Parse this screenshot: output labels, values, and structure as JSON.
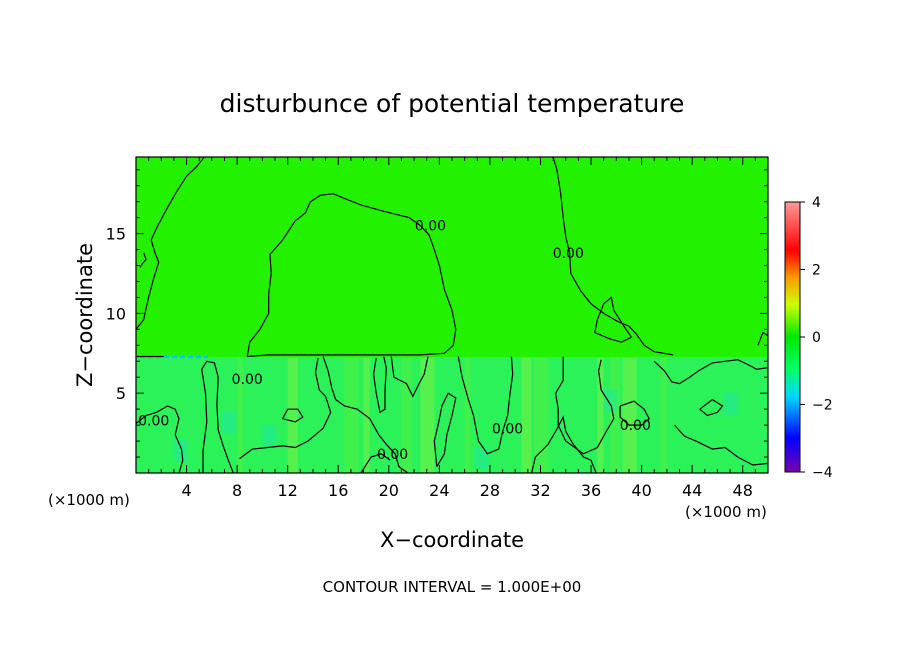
{
  "chart_data": {
    "type": "heatmap",
    "title": "disturbunce of potential temperature",
    "xlabel": "X−coordinate",
    "ylabel": "Z−coordinate",
    "x_unit_left": "(×1000 m)",
    "x_unit_right": "(×1000 m)",
    "footer": "CONTOUR INTERVAL = 1.000E+00",
    "xlim": [
      0,
      50
    ],
    "ylim": [
      0,
      19.8
    ],
    "x_ticks": [
      4,
      8,
      12,
      16,
      20,
      24,
      28,
      32,
      36,
      40,
      44,
      48
    ],
    "y_ticks": [
      5,
      10,
      15
    ],
    "colorbar": {
      "range": [
        -4,
        4
      ],
      "ticks": [
        4,
        2,
        0,
        -2,
        -4
      ],
      "colors": [
        "#7a00b0",
        "#0000ff",
        "#00d8ff",
        "#00ff66",
        "#00e800",
        "#ccff00",
        "#ff9900",
        "#ff0000",
        "#ff9a9a"
      ]
    },
    "background_value": 0.0,
    "boundary_level_z": 7.3,
    "contour_label": "0.00",
    "contour_labels": [
      {
        "x": 8.8,
        "z": 5.9
      },
      {
        "x": 1.4,
        "z": 3.3
      },
      {
        "x": 20.3,
        "z": 1.2
      },
      {
        "x": 23.3,
        "z": 15.5
      },
      {
        "x": 34.2,
        "z": 13.8
      },
      {
        "x": 29.4,
        "z": 2.8
      },
      {
        "x": 39.5,
        "z": 3.0
      }
    ],
    "contours": [
      {
        "level": 0,
        "points": [
          [
            0.0,
            9.0
          ],
          [
            0.6,
            9.6
          ],
          [
            1.0,
            11.0
          ],
          [
            1.4,
            12.2
          ],
          [
            1.8,
            13.2
          ],
          [
            1.5,
            13.8
          ],
          [
            1.2,
            14.6
          ],
          [
            1.6,
            15.3
          ],
          [
            2.4,
            16.5
          ],
          [
            3.2,
            17.6
          ],
          [
            4.0,
            18.6
          ],
          [
            4.8,
            19.2
          ],
          [
            5.4,
            19.8
          ]
        ]
      },
      {
        "level": 0,
        "points": [
          [
            0.3,
            12.9
          ],
          [
            0.8,
            13.4
          ],
          [
            0.6,
            13.8
          ]
        ]
      },
      {
        "level": 0,
        "points": [
          [
            8.8,
            7.3
          ],
          [
            9.0,
            8.2
          ],
          [
            9.8,
            9.0
          ],
          [
            10.5,
            10.0
          ],
          [
            10.5,
            11.2
          ],
          [
            10.7,
            12.5
          ],
          [
            10.6,
            13.7
          ],
          [
            11.6,
            14.6
          ],
          [
            12.6,
            15.8
          ],
          [
            13.4,
            16.3
          ],
          [
            13.8,
            17.0
          ],
          [
            14.6,
            17.4
          ],
          [
            15.6,
            17.5
          ],
          [
            16.8,
            17.1
          ],
          [
            17.8,
            16.8
          ],
          [
            19.6,
            16.4
          ],
          [
            21.6,
            16.0
          ],
          [
            22.5,
            15.5
          ],
          [
            23.2,
            14.9
          ],
          [
            23.6,
            14.0
          ],
          [
            24.0,
            13.0
          ],
          [
            24.4,
            11.5
          ],
          [
            25.0,
            10.2
          ],
          [
            25.3,
            9.0
          ],
          [
            25.1,
            8.0
          ],
          [
            24.4,
            7.5
          ],
          [
            22.5,
            7.4
          ],
          [
            20.0,
            7.4
          ],
          [
            17.0,
            7.4
          ],
          [
            13.5,
            7.4
          ],
          [
            10.5,
            7.4
          ],
          [
            8.8,
            7.3
          ]
        ]
      },
      {
        "level": 0,
        "points": [
          [
            33.0,
            19.8
          ],
          [
            33.3,
            19.0
          ],
          [
            33.6,
            17.5
          ],
          [
            33.8,
            16.0
          ],
          [
            34.0,
            14.8
          ],
          [
            34.3,
            13.8
          ],
          [
            34.4,
            12.5
          ],
          [
            35.2,
            11.4
          ],
          [
            36.0,
            10.6
          ],
          [
            37.0,
            10.0
          ],
          [
            38.1,
            9.5
          ],
          [
            39.0,
            9.2
          ],
          [
            39.6,
            8.7
          ],
          [
            40.2,
            8.0
          ],
          [
            41.0,
            7.6
          ],
          [
            42.5,
            7.4
          ]
        ]
      },
      {
        "level": 0,
        "points": [
          [
            36.3,
            8.8
          ],
          [
            36.5,
            9.6
          ],
          [
            37.0,
            10.6
          ],
          [
            37.6,
            11.0
          ],
          [
            37.8,
            10.2
          ],
          [
            38.6,
            9.2
          ],
          [
            39.2,
            8.5
          ],
          [
            38.4,
            8.2
          ],
          [
            37.5,
            8.4
          ],
          [
            36.3,
            8.8
          ]
        ]
      },
      {
        "level": 0,
        "points": [
          [
            0.0,
            3.1
          ],
          [
            0.8,
            3.6
          ],
          [
            1.6,
            3.8
          ],
          [
            2.5,
            4.2
          ],
          [
            3.1,
            4.0
          ],
          [
            3.4,
            3.4
          ],
          [
            3.1,
            2.4
          ],
          [
            3.6,
            1.5
          ],
          [
            3.7,
            0.8
          ],
          [
            3.4,
            0.0
          ]
        ]
      },
      {
        "level": 0,
        "points": [
          [
            5.3,
            0.0
          ],
          [
            5.3,
            1.4
          ],
          [
            5.6,
            3.2
          ],
          [
            5.5,
            5.0
          ],
          [
            5.2,
            6.5
          ],
          [
            5.6,
            7.0
          ],
          [
            6.2,
            6.9
          ],
          [
            6.5,
            6.0
          ],
          [
            6.4,
            4.3
          ],
          [
            6.5,
            2.7
          ],
          [
            6.9,
            1.7
          ],
          [
            7.3,
            0.8
          ],
          [
            7.7,
            0.0
          ]
        ]
      },
      {
        "level": 0,
        "points": [
          [
            8.2,
            0.9
          ],
          [
            9.2,
            1.5
          ],
          [
            10.4,
            1.6
          ],
          [
            11.6,
            1.7
          ],
          [
            12.6,
            1.6
          ],
          [
            13.6,
            2.0
          ],
          [
            14.8,
            2.8
          ],
          [
            15.4,
            3.8
          ],
          [
            15.0,
            4.8
          ],
          [
            14.5,
            5.2
          ],
          [
            14.2,
            6.3
          ],
          [
            14.4,
            7.2
          ]
        ]
      },
      {
        "level": 0,
        "points": [
          [
            14.8,
            7.3
          ],
          [
            15.2,
            6.4
          ],
          [
            15.5,
            5.3
          ],
          [
            15.8,
            4.6
          ],
          [
            16.5,
            4.2
          ],
          [
            17.5,
            4.0
          ],
          [
            18.5,
            3.4
          ],
          [
            19.2,
            2.4
          ],
          [
            19.8,
            1.8
          ],
          [
            20.5,
            1.2
          ],
          [
            20.8,
            0.4
          ],
          [
            21.5,
            0.0
          ]
        ]
      },
      {
        "level": 0,
        "points": [
          [
            17.8,
            0.0
          ],
          [
            18.6,
            1.0
          ],
          [
            19.4,
            1.2
          ],
          [
            20.1,
            0.8
          ]
        ]
      },
      {
        "level": 0,
        "points": [
          [
            19.0,
            7.2
          ],
          [
            18.8,
            6.2
          ],
          [
            19.0,
            5.0
          ],
          [
            19.3,
            3.8
          ],
          [
            19.7,
            4.0
          ],
          [
            19.7,
            5.2
          ],
          [
            19.8,
            6.6
          ],
          [
            19.6,
            7.3
          ]
        ]
      },
      {
        "level": 0,
        "points": [
          [
            20.2,
            7.3
          ],
          [
            20.4,
            6.0
          ],
          [
            21.4,
            5.6
          ],
          [
            21.9,
            4.8
          ],
          [
            22.4,
            5.6
          ],
          [
            22.8,
            6.2
          ],
          [
            23.1,
            7.3
          ]
        ]
      },
      {
        "level": 0,
        "points": [
          [
            25.5,
            7.3
          ],
          [
            25.8,
            6.0
          ],
          [
            26.3,
            4.6
          ],
          [
            26.7,
            3.6
          ],
          [
            27.1,
            2.0
          ],
          [
            27.8,
            1.2
          ],
          [
            28.7,
            1.5
          ],
          [
            29.0,
            2.6
          ],
          [
            29.4,
            3.6
          ],
          [
            29.6,
            5.0
          ],
          [
            29.8,
            6.2
          ],
          [
            29.7,
            7.3
          ]
        ]
      },
      {
        "level": 0,
        "points": [
          [
            23.8,
            0.4
          ],
          [
            24.4,
            1.2
          ],
          [
            24.6,
            2.4
          ],
          [
            25.0,
            3.6
          ],
          [
            25.3,
            4.7
          ],
          [
            24.7,
            5.0
          ],
          [
            24.2,
            4.2
          ],
          [
            23.9,
            3.0
          ],
          [
            23.6,
            2.0
          ],
          [
            23.8,
            0.4
          ]
        ]
      },
      {
        "level": 0,
        "points": [
          [
            31.3,
            0.0
          ],
          [
            31.6,
            1.0
          ],
          [
            32.6,
            1.8
          ],
          [
            33.2,
            2.6
          ],
          [
            33.8,
            3.5
          ],
          [
            34.0,
            2.6
          ],
          [
            34.6,
            1.8
          ],
          [
            35.4,
            1.0
          ],
          [
            36.0,
            0.8
          ],
          [
            36.4,
            0.0
          ]
        ]
      },
      {
        "level": 0,
        "points": [
          [
            38.3,
            4.2
          ],
          [
            39.4,
            4.5
          ],
          [
            40.2,
            4.0
          ],
          [
            40.6,
            3.4
          ],
          [
            40.0,
            3.0
          ],
          [
            39.0,
            3.0
          ],
          [
            38.3,
            3.5
          ],
          [
            38.3,
            4.2
          ]
        ]
      },
      {
        "level": 0,
        "points": [
          [
            41.0,
            7.0
          ],
          [
            41.8,
            6.4
          ],
          [
            42.4,
            5.7
          ],
          [
            43.0,
            5.6
          ],
          [
            43.8,
            6.0
          ],
          [
            44.5,
            6.4
          ],
          [
            45.6,
            6.9
          ],
          [
            46.6,
            7.0
          ],
          [
            47.6,
            7.1
          ],
          [
            48.4,
            6.8
          ],
          [
            49.1,
            6.5
          ],
          [
            50.0,
            6.6
          ]
        ]
      },
      {
        "level": 0,
        "points": [
          [
            44.6,
            4.0
          ],
          [
            45.6,
            4.6
          ],
          [
            46.4,
            4.2
          ],
          [
            46.0,
            3.8
          ],
          [
            45.2,
            3.6
          ],
          [
            44.6,
            4.0
          ]
        ]
      },
      {
        "level": 0,
        "points": [
          [
            42.6,
            3.0
          ],
          [
            43.4,
            2.3
          ],
          [
            44.3,
            2.0
          ],
          [
            45.6,
            1.5
          ],
          [
            46.6,
            1.6
          ],
          [
            47.6,
            1.0
          ],
          [
            48.8,
            0.5
          ],
          [
            50.0,
            0.6
          ]
        ]
      },
      {
        "level": 0,
        "points": [
          [
            33.8,
            7.3
          ],
          [
            33.8,
            5.8
          ],
          [
            33.2,
            5.0
          ],
          [
            33.4,
            4.0
          ],
          [
            33.4,
            3.0
          ],
          [
            34.0,
            2.0
          ],
          [
            35.4,
            1.2
          ],
          [
            36.5,
            1.6
          ],
          [
            37.2,
            2.6
          ],
          [
            37.8,
            3.4
          ],
          [
            37.6,
            4.2
          ],
          [
            36.8,
            5.2
          ],
          [
            36.6,
            6.4
          ],
          [
            36.8,
            7.1
          ]
        ]
      },
      {
        "level": 0,
        "points": [
          [
            11.6,
            3.4
          ],
          [
            12.0,
            4.0
          ],
          [
            12.8,
            4.0
          ],
          [
            13.2,
            3.5
          ],
          [
            12.6,
            3.2
          ],
          [
            11.6,
            3.4
          ]
        ]
      },
      {
        "level": 0,
        "points": [
          [
            49.2,
            8.0
          ],
          [
            49.6,
            8.8
          ],
          [
            50.0,
            8.6
          ]
        ]
      }
    ]
  }
}
